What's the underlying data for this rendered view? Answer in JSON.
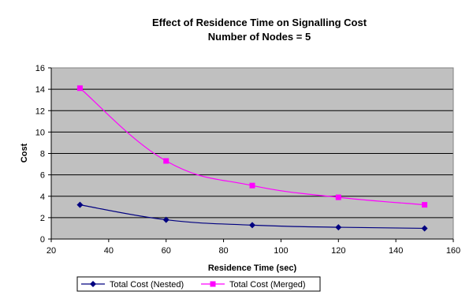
{
  "chart_data": {
    "type": "line",
    "title_line1": "Effect of Residence Time on Signalling Cost",
    "title_line2": "Number of Nodes = 5",
    "xlabel": "Residence Time (sec)",
    "ylabel": "Cost",
    "xlim": [
      20,
      160
    ],
    "ylim": [
      0,
      16
    ],
    "x_ticks": [
      "20",
      "40",
      "60",
      "80",
      "100",
      "120",
      "140",
      "160"
    ],
    "y_ticks": [
      "0",
      "2",
      "4",
      "6",
      "8",
      "10",
      "12",
      "14",
      "16"
    ],
    "grid": true,
    "legend_position": "bottom",
    "plot_background": "#c0c0c0",
    "x": [
      30,
      60,
      90,
      120,
      150
    ],
    "series": [
      {
        "name": "Total Cost (Nested)",
        "color": "#000080",
        "marker": "diamond",
        "values": [
          3.2,
          1.8,
          1.3,
          1.1,
          1.0
        ]
      },
      {
        "name": "Total Cost (Merged)",
        "color": "#ff00ff",
        "marker": "square",
        "values": [
          14.1,
          7.3,
          5.0,
          3.9,
          3.2
        ]
      }
    ]
  }
}
